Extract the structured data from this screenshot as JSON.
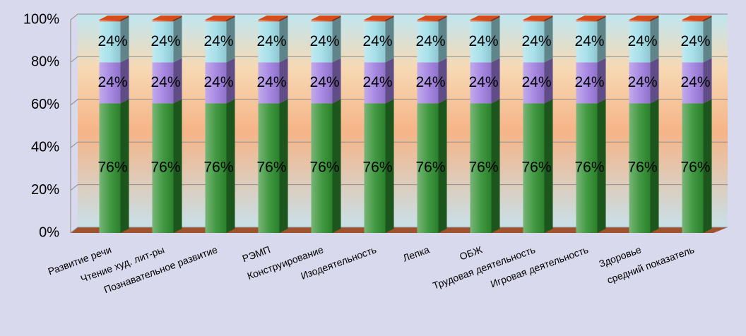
{
  "chart_data": {
    "type": "stacked_percent_3d_bar",
    "categories": [
      "Развитие речи",
      "Чтение худ. лит-ры",
      "Познавательное развитие",
      "РЭМП",
      "Конструирование",
      "Изодеятельность",
      "Лепка",
      "ОБЖ",
      "Трудовая деятельность",
      "Игровая деятельность",
      "Здоровье",
      "средний показатель"
    ],
    "series": [
      {
        "color": "#2f8f2f",
        "values": [
          76,
          76,
          76,
          76,
          76,
          76,
          76,
          76,
          76,
          76,
          76,
          76
        ],
        "value_labels": [
          "76%",
          "76%",
          "76%",
          "76%",
          "76%",
          "76%",
          "76%",
          "76%",
          "76%",
          "76%",
          "76%",
          "76%"
        ]
      },
      {
        "color": "#a07ee0",
        "values": [
          24,
          24,
          24,
          24,
          24,
          24,
          24,
          24,
          24,
          24,
          24,
          24
        ],
        "value_labels": [
          "24%",
          "24%",
          "24%",
          "24%",
          "24%",
          "24%",
          "24%",
          "24%",
          "24%",
          "24%",
          "24%",
          "24%"
        ]
      },
      {
        "color": "#9fdde8",
        "values": [
          24,
          24,
          24,
          24,
          24,
          24,
          24,
          24,
          24,
          24,
          24,
          24
        ],
        "value_labels": [
          "24%",
          "24%",
          "24%",
          "24%",
          "24%",
          "24%",
          "24%",
          "24%",
          "24%",
          "24%",
          "24%",
          "24%"
        ]
      },
      {
        "color": "#e0501e",
        "values": [
          1,
          1,
          1,
          1,
          1,
          1,
          1,
          1,
          1,
          1,
          1,
          1
        ]
      }
    ],
    "ylim": [
      0,
      100
    ],
    "yticks": [
      {
        "value": 0,
        "label": "0%"
      },
      {
        "value": 20,
        "label": "20%"
      },
      {
        "value": 40,
        "label": "40%"
      },
      {
        "value": 60,
        "label": "60%"
      },
      {
        "value": 80,
        "label": "80%"
      },
      {
        "value": 100,
        "label": "100%"
      }
    ],
    "grid": true
  }
}
